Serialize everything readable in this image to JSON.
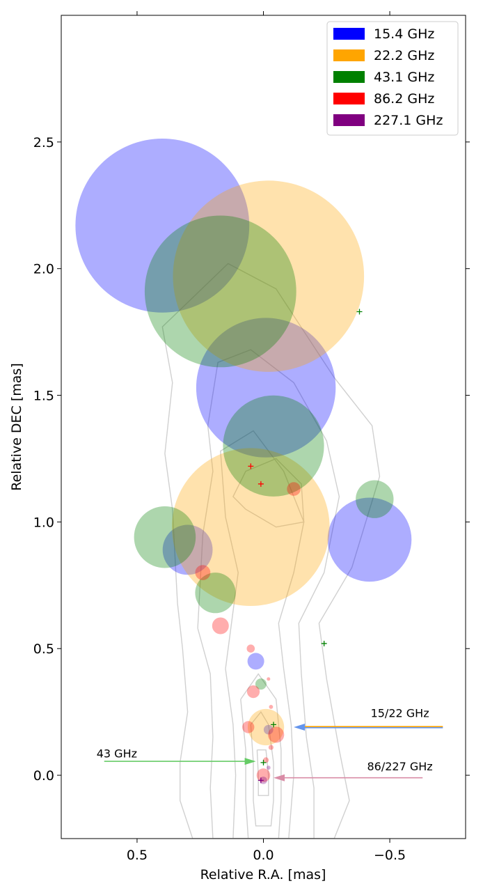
{
  "chart_data": {
    "type": "scatter",
    "xlabel": "Relative R.A. [mas]",
    "ylabel": "Relative DEC [mas]",
    "xlim": [
      0.8,
      -0.8
    ],
    "ylim": [
      -0.25,
      3.0
    ],
    "x_inverted": true,
    "xticks": [
      0.5,
      0.0,
      -0.5
    ],
    "xtick_labels": [
      "0.5",
      "0.0",
      "−0.5"
    ],
    "yticks": [
      0.0,
      0.5,
      1.0,
      1.5,
      2.0,
      2.5
    ],
    "ytick_labels": [
      "0.0",
      "0.5",
      "1.0",
      "1.5",
      "2.0",
      "2.5"
    ],
    "grid": false,
    "legend_position": "top-right",
    "series": [
      {
        "name": "15.4 GHz",
        "color": "#0000ff",
        "components": [
          {
            "x": 0.4,
            "y": 2.17,
            "r": 0.344
          },
          {
            "x": -0.01,
            "y": 1.53,
            "r": 0.276
          },
          {
            "x": -0.42,
            "y": 0.93,
            "r": 0.166
          },
          {
            "x": 0.3,
            "y": 0.89,
            "r": 0.099
          },
          {
            "x": 0.03,
            "y": 0.45,
            "r": 0.033
          },
          {
            "x": -0.02,
            "y": 0.18,
            "r": 0.019
          }
        ]
      },
      {
        "name": "22.2 GHz",
        "color": "#ffa500",
        "components": [
          {
            "x": -0.02,
            "y": 1.97,
            "r": 0.378
          },
          {
            "x": 0.05,
            "y": 0.98,
            "r": 0.312
          },
          {
            "x": -0.01,
            "y": 0.19,
            "r": 0.072
          }
        ]
      },
      {
        "name": "43.1 GHz",
        "color": "#008000",
        "components": [
          {
            "x": 0.17,
            "y": 1.91,
            "r": 0.3
          },
          {
            "x": -0.04,
            "y": 1.3,
            "r": 0.2
          },
          {
            "x": 0.39,
            "y": 0.94,
            "r": 0.122
          },
          {
            "x": 0.19,
            "y": 0.72,
            "r": 0.08
          },
          {
            "x": -0.44,
            "y": 1.09,
            "r": 0.075
          },
          {
            "x": 0.01,
            "y": 0.36,
            "r": 0.022
          }
        ]
      },
      {
        "name": "86.2 GHz",
        "color": "#ff0000",
        "components": [
          {
            "x": -0.12,
            "y": 1.13,
            "r": 0.027
          },
          {
            "x": 0.24,
            "y": 0.8,
            "r": 0.03
          },
          {
            "x": 0.17,
            "y": 0.59,
            "r": 0.033
          },
          {
            "x": 0.05,
            "y": 0.5,
            "r": 0.016
          },
          {
            "x": 0.04,
            "y": 0.33,
            "r": 0.025
          },
          {
            "x": 0.06,
            "y": 0.19,
            "r": 0.024
          },
          {
            "x": -0.05,
            "y": 0.16,
            "r": 0.032
          },
          {
            "x": 0.0,
            "y": 0.0,
            "r": 0.027
          },
          {
            "x": -0.03,
            "y": 0.27,
            "r": 0.008
          },
          {
            "x": -0.02,
            "y": 0.38,
            "r": 0.007
          },
          {
            "x": -0.03,
            "y": 0.11,
            "r": 0.01
          },
          {
            "x": -0.01,
            "y": 0.06,
            "r": 0.011
          }
        ]
      },
      {
        "name": "227.1 GHz",
        "color": "#800080",
        "components": [
          {
            "x": 0.0,
            "y": -0.02,
            "r": 0.015
          },
          {
            "x": -0.02,
            "y": 0.03,
            "r": 0.008
          }
        ]
      }
    ],
    "markers": [
      {
        "x": -0.38,
        "y": 1.83,
        "color": "#008000"
      },
      {
        "x": -0.24,
        "y": 0.52,
        "color": "#008000"
      },
      {
        "x": 0.05,
        "y": 1.22,
        "color": "#ff0000"
      },
      {
        "x": 0.01,
        "y": 1.15,
        "color": "#ff0000"
      },
      {
        "x": -0.04,
        "y": 0.2,
        "color": "#008000"
      },
      {
        "x": 0.0,
        "y": 0.05,
        "color": "#008000"
      },
      {
        "x": 0.01,
        "y": -0.02,
        "color": "#800080"
      }
    ],
    "contours": [
      [
        [
          0.34,
          0.68
        ],
        [
          0.32,
          0.5
        ],
        [
          0.3,
          0.25
        ],
        [
          0.33,
          0.05
        ],
        [
          0.33,
          -0.1
        ],
        [
          0.28,
          -0.25
        ],
        [
          -0.28,
          -0.25
        ],
        [
          -0.34,
          -0.1
        ],
        [
          -0.3,
          0.1
        ],
        [
          -0.25,
          0.38
        ],
        [
          -0.22,
          0.6
        ],
        [
          -0.35,
          0.82
        ],
        [
          -0.46,
          1.18
        ],
        [
          -0.43,
          1.38
        ],
        [
          -0.28,
          1.57
        ],
        [
          -0.05,
          1.92
        ],
        [
          0.14,
          2.02
        ],
        [
          0.4,
          1.77
        ],
        [
          0.36,
          1.55
        ],
        [
          0.39,
          1.27
        ],
        [
          0.36,
          1.05
        ],
        [
          0.34,
          0.68
        ]
      ],
      [
        [
          0.26,
          0.58
        ],
        [
          0.21,
          0.4
        ],
        [
          0.2,
          0.15
        ],
        [
          0.21,
          -0.05
        ],
        [
          0.2,
          -0.25
        ],
        [
          -0.2,
          -0.25
        ],
        [
          -0.2,
          -0.05
        ],
        [
          -0.17,
          0.15
        ],
        [
          -0.15,
          0.4
        ],
        [
          -0.14,
          0.6
        ],
        [
          -0.24,
          0.8
        ],
        [
          -0.3,
          1.1
        ],
        [
          -0.25,
          1.32
        ],
        [
          -0.12,
          1.55
        ],
        [
          0.05,
          1.68
        ],
        [
          0.18,
          1.63
        ],
        [
          0.22,
          1.38
        ],
        [
          0.2,
          1.2
        ],
        [
          0.24,
          0.95
        ],
        [
          0.26,
          0.58
        ]
      ],
      [
        [
          0.15,
          0.42
        ],
        [
          0.12,
          0.2
        ],
        [
          0.11,
          0.0
        ],
        [
          0.12,
          -0.25
        ],
        [
          -0.1,
          -0.25
        ],
        [
          -0.12,
          0.0
        ],
        [
          -0.11,
          0.2
        ],
        [
          -0.08,
          0.42
        ],
        [
          -0.06,
          0.6
        ],
        [
          -0.12,
          0.8
        ],
        [
          -0.16,
          1.0
        ],
        [
          -0.08,
          1.2
        ],
        [
          0.04,
          1.36
        ],
        [
          0.17,
          1.28
        ],
        [
          0.15,
          1.02
        ],
        [
          0.1,
          0.8
        ],
        [
          0.15,
          0.42
        ]
      ],
      [
        [
          0.07,
          1.05
        ],
        [
          0.12,
          1.1
        ],
        [
          0.07,
          1.2
        ],
        [
          -0.05,
          1.25
        ],
        [
          -0.15,
          1.15
        ],
        [
          -0.16,
          1.0
        ],
        [
          -0.05,
          0.98
        ],
        [
          0.07,
          1.05
        ]
      ],
      [
        [
          0.09,
          0.3
        ],
        [
          0.07,
          0.1
        ],
        [
          0.07,
          -0.1
        ],
        [
          0.06,
          -0.25
        ],
        [
          -0.06,
          -0.25
        ],
        [
          -0.07,
          -0.1
        ],
        [
          -0.07,
          0.1
        ],
        [
          -0.05,
          0.3
        ],
        [
          0.02,
          0.4
        ],
        [
          0.09,
          0.3
        ]
      ],
      [
        [
          0.05,
          0.2
        ],
        [
          0.04,
          0.05
        ],
        [
          0.04,
          -0.1
        ],
        [
          0.03,
          -0.2
        ],
        [
          -0.03,
          -0.2
        ],
        [
          -0.04,
          -0.1
        ],
        [
          -0.04,
          0.05
        ],
        [
          -0.02,
          0.2
        ],
        [
          0.01,
          0.25
        ],
        [
          0.05,
          0.2
        ]
      ],
      [
        [
          0.025,
          0.1
        ],
        [
          0.02,
          0.0
        ],
        [
          0.02,
          -0.08
        ],
        [
          -0.02,
          -0.08
        ],
        [
          -0.02,
          0.0
        ],
        [
          -0.01,
          0.1
        ],
        [
          0.025,
          0.1
        ]
      ]
    ],
    "annotations": [
      {
        "label": "15/22 GHz",
        "text_x": -0.54,
        "text_y": 0.23,
        "tail_x": -0.71,
        "tail_y": 0.19,
        "head_x": -0.12,
        "head_y": 0.19,
        "colors": [
          "#ffa500",
          "#6495ed"
        ]
      },
      {
        "label": "43 GHz",
        "text_x": 0.58,
        "text_y": 0.07,
        "tail_x": 0.63,
        "tail_y": 0.055,
        "head_x": 0.03,
        "head_y": 0.055,
        "colors": [
          "#66cc66"
        ]
      },
      {
        "label": "86/227 GHz",
        "text_x": -0.54,
        "text_y": 0.02,
        "tail_x": -0.63,
        "tail_y": -0.01,
        "head_x": -0.04,
        "head_y": -0.01,
        "colors": [
          "#d98ca6"
        ]
      }
    ]
  }
}
